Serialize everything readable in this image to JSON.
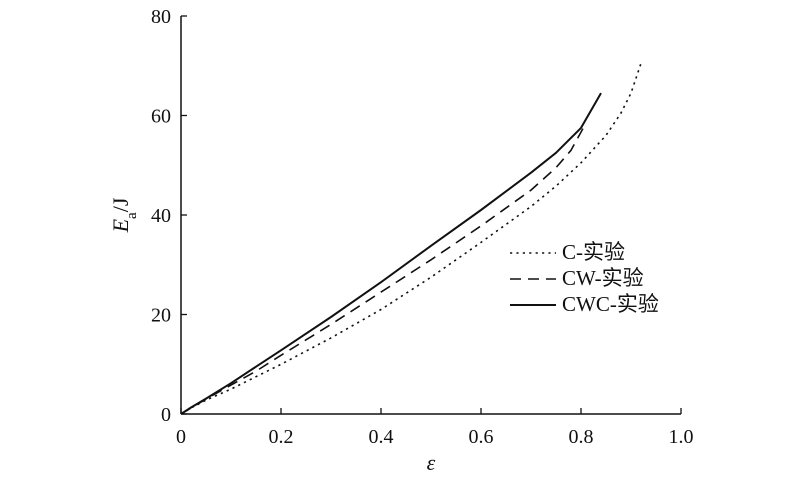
{
  "chart_data": {
    "type": "line",
    "title": "",
    "xlabel": "ε",
    "ylabel": {
      "main": "E",
      "sub": "a",
      "unit": "/J"
    },
    "xlim": [
      0,
      1.0
    ],
    "ylim": [
      0,
      80
    ],
    "xticks": [
      0,
      0.2,
      0.4,
      0.6,
      0.8,
      1.0
    ],
    "xtick_labels": [
      "0",
      "0.2",
      "0.4",
      "0.6",
      "0.8",
      "1.0"
    ],
    "yticks": [
      0,
      20,
      40,
      60,
      80
    ],
    "ytick_labels": [
      "0",
      "20",
      "40",
      "60",
      "80"
    ],
    "grid": false,
    "legend_position": "right",
    "series": [
      {
        "name": "C-实验",
        "line_style": "dotted",
        "x": [
          0,
          0.02,
          0.05,
          0.1,
          0.15,
          0.2,
          0.3,
          0.4,
          0.5,
          0.6,
          0.7,
          0.75,
          0.8,
          0.85,
          0.88,
          0.9,
          0.92
        ],
        "y": [
          0,
          1.2,
          2.8,
          5.0,
          7.5,
          10.0,
          15.3,
          21.0,
          27.5,
          34.5,
          41.7,
          45.8,
          50.5,
          56.0,
          60.5,
          64.5,
          70.5
        ]
      },
      {
        "name": "CW-实验",
        "line_style": "dashed",
        "x": [
          0,
          0.02,
          0.05,
          0.1,
          0.15,
          0.2,
          0.3,
          0.4,
          0.5,
          0.6,
          0.7,
          0.75,
          0.78,
          0.81
        ],
        "y": [
          0,
          1.2,
          3.0,
          5.8,
          8.6,
          11.8,
          18.0,
          24.5,
          31.0,
          37.8,
          45.0,
          49.5,
          53.0,
          58.5
        ]
      },
      {
        "name": "CWC-实验",
        "line_style": "solid",
        "x": [
          0,
          0.02,
          0.05,
          0.1,
          0.15,
          0.2,
          0.3,
          0.4,
          0.5,
          0.6,
          0.7,
          0.75,
          0.8,
          0.84
        ],
        "y": [
          0,
          1.3,
          3.1,
          6.2,
          9.5,
          12.8,
          19.5,
          26.5,
          33.8,
          41.0,
          48.5,
          52.5,
          57.5,
          64.5
        ]
      }
    ]
  }
}
